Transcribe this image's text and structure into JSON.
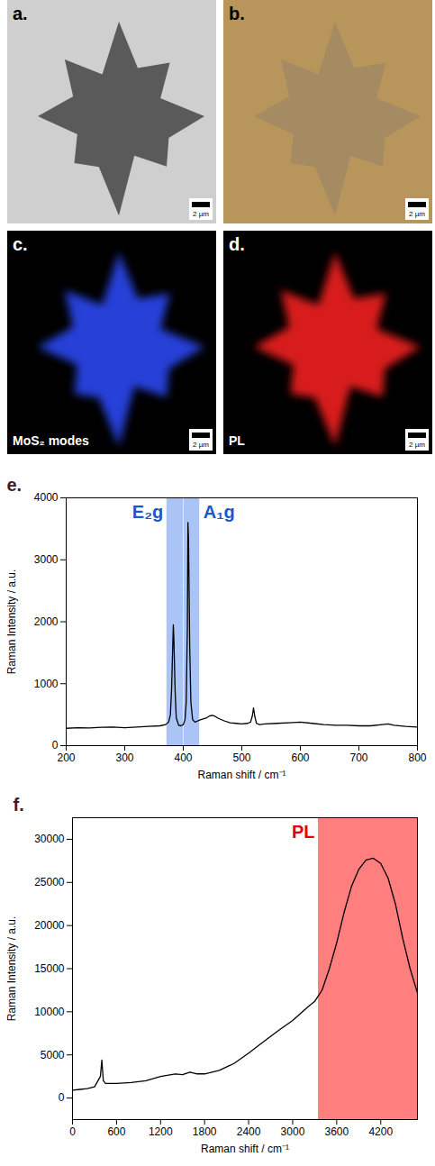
{
  "panels": [
    {
      "label": "a.",
      "scale_bar": "2 µm"
    },
    {
      "label": "b.",
      "scale_bar": "2 µm"
    },
    {
      "label": "c.",
      "scale_bar": "2 µm",
      "caption": "MoS₂ modes"
    },
    {
      "label": "d.",
      "scale_bar": "2 µm",
      "caption": "PL"
    }
  ],
  "chart_data": [
    {
      "type": "line",
      "title": "e.",
      "x_label": "Raman shift / cm⁻¹",
      "y_label": "Raman Intensity / a.u.",
      "x": [
        200,
        220,
        240,
        260,
        280,
        300,
        320,
        340,
        360,
        370,
        375,
        378,
        380,
        382,
        383,
        384,
        386,
        388,
        392,
        396,
        400,
        403,
        405,
        407,
        408,
        409,
        411,
        413,
        416,
        420,
        425,
        430,
        440,
        445,
        450,
        455,
        460,
        470,
        480,
        490,
        500,
        510,
        515,
        518,
        520,
        522,
        525,
        530,
        540,
        560,
        580,
        600,
        620,
        640,
        660,
        680,
        700,
        720,
        740,
        750,
        760,
        780,
        800
      ],
      "values": [
        280,
        290,
        285,
        295,
        300,
        290,
        300,
        310,
        320,
        340,
        380,
        500,
        900,
        1600,
        1950,
        1700,
        900,
        450,
        330,
        320,
        340,
        420,
        700,
        1900,
        3600,
        3300,
        1600,
        700,
        420,
        380,
        400,
        420,
        450,
        480,
        490,
        470,
        440,
        400,
        370,
        360,
        350,
        360,
        380,
        480,
        610,
        480,
        360,
        340,
        350,
        360,
        370,
        380,
        360,
        340,
        330,
        330,
        320,
        320,
        340,
        350,
        330,
        310,
        300
      ],
      "color": "#000000",
      "xlim": [
        200,
        800
      ],
      "xticks": [
        200,
        300,
        400,
        500,
        600,
        700,
        800
      ],
      "ylim": [
        0,
        4000
      ],
      "yticks": [
        0,
        1000,
        2000,
        3000,
        4000
      ],
      "annotations": [
        {
          "label": "E₂g",
          "x1": 372,
          "x2": 400,
          "color": "#a9c4f5"
        },
        {
          "label": "A₁g",
          "x1": 401,
          "x2": 428,
          "color": "#a9c4f5"
        }
      ]
    },
    {
      "type": "line",
      "title": "f.",
      "x_label": "Raman shift / cm⁻¹",
      "y_label": "Raman Intensity / a.u.",
      "x": [
        0,
        100,
        200,
        300,
        380,
        400,
        420,
        450,
        600,
        800,
        1000,
        1200,
        1400,
        1500,
        1600,
        1700,
        1800,
        2000,
        2200,
        2400,
        2600,
        2800,
        3000,
        3200,
        3300,
        3400,
        3500,
        3600,
        3700,
        3800,
        3900,
        4000,
        4100,
        4200,
        4300,
        4400,
        4500,
        4600,
        4700
      ],
      "values": [
        900,
        1000,
        1100,
        1300,
        2500,
        4400,
        2000,
        1700,
        1700,
        1800,
        2000,
        2500,
        2800,
        2700,
        3000,
        2800,
        2800,
        3200,
        4000,
        5200,
        6500,
        7800,
        9000,
        10500,
        11200,
        12500,
        15000,
        18000,
        21500,
        24500,
        26500,
        27600,
        27800,
        27200,
        25500,
        22500,
        18500,
        15000,
        12200
      ],
      "color": "#000000",
      "xlim": [
        0,
        4700
      ],
      "xticks": [
        0,
        600,
        1200,
        1800,
        2400,
        3000,
        3600,
        4200
      ],
      "ylim": [
        -2500,
        32500
      ],
      "yticks": [
        0,
        5000,
        10000,
        15000,
        20000,
        25000,
        30000
      ],
      "annotations": [
        {
          "label": "PL",
          "x1": 3350,
          "x2": 4700,
          "color": "#ff7f7f"
        }
      ]
    }
  ]
}
